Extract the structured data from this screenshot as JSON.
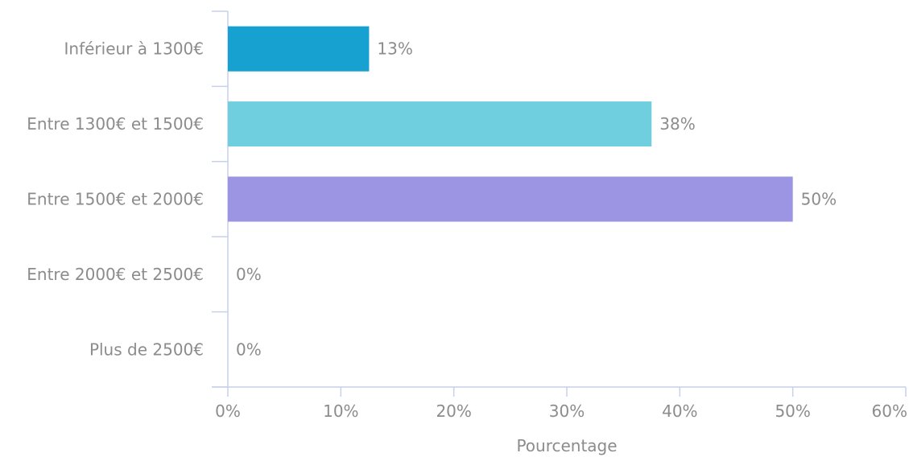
{
  "chart_data": {
    "type": "bar",
    "orientation": "horizontal",
    "categories": [
      "Inférieur à 1300€",
      "Entre 1300€ et 1500€",
      "Entre 1500€ et 2000€",
      "Entre 2000€ et 2500€",
      "Plus de 2500€"
    ],
    "values": [
      12.5,
      37.5,
      50,
      0,
      0
    ],
    "data_labels": [
      "13%",
      "38%",
      "50%",
      "0%",
      "0%"
    ],
    "colors": [
      "#16a1d1",
      "#70cfdf",
      "#9c95e3",
      "#9c95e3",
      "#9c95e3"
    ],
    "xlabel": "Pourcentage",
    "xlim": [
      0,
      60
    ],
    "xticks": [
      0,
      10,
      20,
      30,
      40,
      50,
      60
    ],
    "xtick_labels": [
      "0%",
      "10%",
      "20%",
      "30%",
      "40%",
      "50%",
      "60%"
    ],
    "grid": false,
    "axis_color": "#c9d0ea",
    "text_color": "#8c8c8c"
  }
}
